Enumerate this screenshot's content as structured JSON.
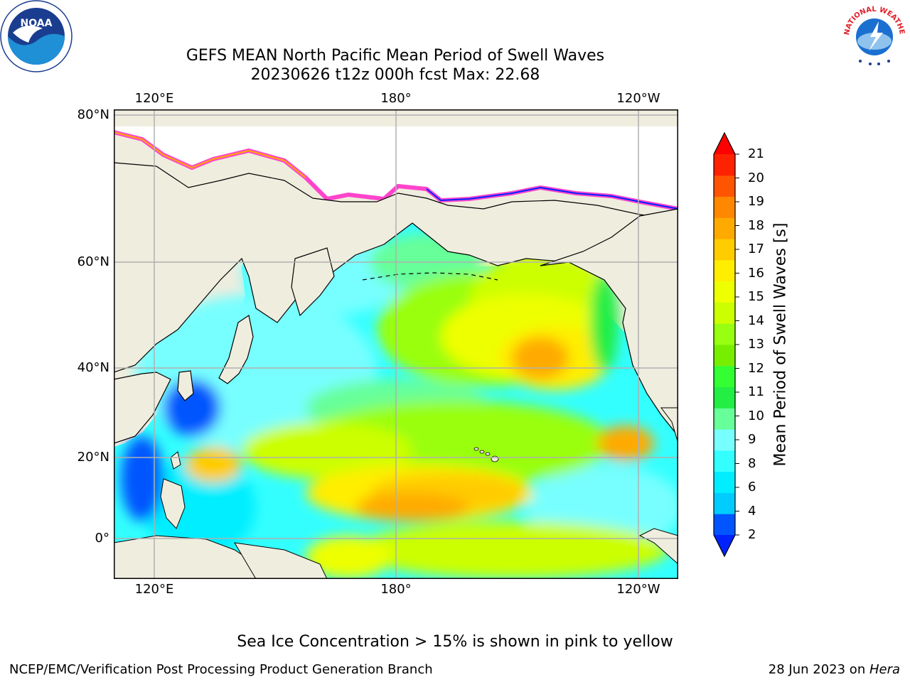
{
  "title": {
    "line1": "GEFS MEAN North Pacific Mean Period of Swell Waves",
    "line2": "20230626 t12z 000h fcst   Max: 22.68"
  },
  "logos": {
    "noaa_left": "NOAA",
    "nws_right": "NATIONAL WEATHER SERVICE"
  },
  "map": {
    "projection": "equirectangular",
    "lon_ticks_top": [
      "120°E",
      "180°",
      "120°W"
    ],
    "lon_ticks_bottom": [
      "120°E",
      "180°",
      "120°W"
    ],
    "lat_ticks": [
      "80°N",
      "60°N",
      "40°N",
      "20°N",
      "0°"
    ],
    "land_color": "#efedde",
    "grid_color": "#b0b0b0"
  },
  "colorbar": {
    "label": "Mean Period of Swell Waves [s]",
    "ticks": [
      "21",
      "20",
      "19",
      "18",
      "17",
      "16",
      "15",
      "14",
      "13",
      "12",
      "11",
      "10",
      "9",
      "8",
      "6",
      "4",
      "2"
    ],
    "colors_bottom_to_top": [
      "#0055ff",
      "#00ccff",
      "#00eeff",
      "#33ffff",
      "#77ffff",
      "#66ff99",
      "#22ee44",
      "#33ff33",
      "#77ee00",
      "#99ff11",
      "#ccff00",
      "#eeff00",
      "#ffee00",
      "#ffcc00",
      "#ffaa00",
      "#ff8800",
      "#ff5500",
      "#ff2200"
    ],
    "under_color": "#0022ff",
    "over_color": "#ff0000"
  },
  "note": "Sea Ice Concentration > 15% is shown in pink to yellow",
  "footer": {
    "left": "NCEP/EMC/Verification Post Processing Product Generation Branch",
    "right_date": "28 Jun 2023 on ",
    "right_host": "Hera"
  }
}
